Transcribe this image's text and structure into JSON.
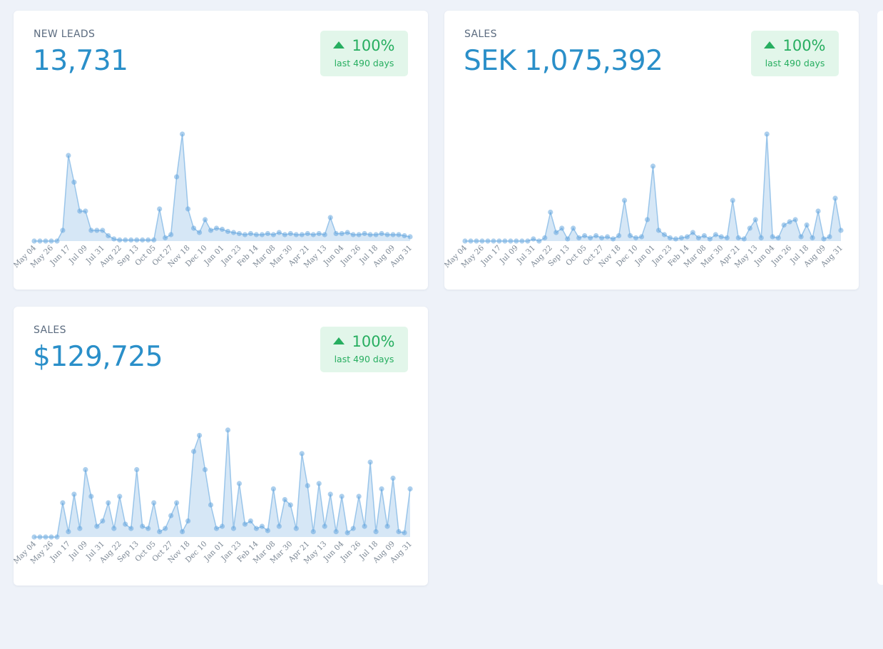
{
  "chart_data": [
    {
      "type": "area",
      "title": "NEW LEADS",
      "total": "13,731",
      "change": "100%",
      "period": "last 490 days",
      "color": "#5aa0dc",
      "ylim": [
        0,
        100
      ],
      "categories": [
        "May 04",
        null,
        null,
        "May 26",
        null,
        null,
        "Jun 17",
        null,
        null,
        "Jul 09",
        null,
        null,
        "Jul 31",
        null,
        null,
        "Aug 22",
        null,
        null,
        "Sep 13",
        null,
        null,
        "Oct 05",
        null,
        null,
        "Oct 27",
        null,
        null,
        "Nov 18",
        null,
        null,
        "Dec 10",
        null,
        null,
        "Jan 01",
        null,
        null,
        "Jan 23",
        null,
        null,
        "Feb 14",
        null,
        null,
        "Mar 08",
        null,
        null,
        "Mar 30",
        null,
        null,
        "Apr 21",
        null,
        null,
        "May 13",
        null,
        null,
        "Jun 04",
        null,
        null,
        "Jun 26",
        null,
        null,
        "Jul 18",
        null,
        null,
        "Aug 09",
        null,
        null,
        "Aug 31"
      ],
      "values": [
        0,
        0,
        0,
        0,
        0,
        10,
        80,
        55,
        28,
        28,
        10,
        10,
        10,
        5,
        2,
        1,
        1,
        1,
        1,
        1,
        1,
        1,
        30,
        3,
        6,
        60,
        100,
        30,
        12,
        8,
        20,
        10,
        12,
        11,
        9,
        8,
        7,
        6,
        7,
        6,
        6,
        7,
        6,
        8,
        6,
        7,
        6,
        6,
        7,
        6,
        7,
        6,
        22,
        7,
        7,
        8,
        6,
        6,
        7,
        6,
        6,
        7,
        6,
        6,
        6,
        5,
        4
      ]
    },
    {
      "type": "area",
      "title": "SALES",
      "total": "SEK 1,075,392",
      "change": "100%",
      "period": "last 490 days",
      "color": "#5aa0dc",
      "ylim": [
        0,
        100
      ],
      "categories": [
        "May 04",
        null,
        null,
        "May 26",
        null,
        null,
        "Jun 17",
        null,
        null,
        "Jul 09",
        null,
        null,
        "Jul 31",
        null,
        null,
        "Aug 22",
        null,
        null,
        "Sep 13",
        null,
        null,
        "Oct 05",
        null,
        null,
        "Oct 27",
        null,
        null,
        "Nov 18",
        null,
        null,
        "Dec 10",
        null,
        null,
        "Jan 01",
        null,
        null,
        "Jan 23",
        null,
        null,
        "Feb 14",
        null,
        null,
        "Mar 08",
        null,
        null,
        "Mar 30",
        null,
        null,
        "Apr 21",
        null,
        null,
        "May 13",
        null,
        null,
        "Jun 04",
        null,
        null,
        "Jun 26",
        null,
        null,
        "Jul 18",
        null,
        null,
        "Aug 09",
        null,
        null,
        "Aug 31"
      ],
      "values": [
        0,
        0,
        0,
        0,
        0,
        0,
        0,
        0,
        0,
        0,
        0,
        0,
        2,
        0,
        3,
        27,
        8,
        12,
        2,
        12,
        3,
        5,
        3,
        5,
        3,
        4,
        2,
        5,
        38,
        5,
        3,
        4,
        20,
        70,
        10,
        6,
        3,
        2,
        3,
        4,
        8,
        3,
        5,
        2,
        6,
        4,
        3,
        38,
        3,
        2,
        12,
        20,
        3,
        100,
        4,
        3,
        15,
        18,
        20,
        4,
        15,
        3,
        28,
        2,
        4,
        40,
        10
      ]
    },
    {
      "type": "area",
      "title": "SALES",
      "total": "$129,725",
      "change": "100%",
      "period": "last 490 days",
      "color": "#5aa0dc",
      "ylim": [
        0,
        100
      ],
      "categories": [
        "May 04",
        null,
        null,
        "May 26",
        null,
        null,
        "Jun 17",
        null,
        null,
        "Jul 09",
        null,
        null,
        "Jul 31",
        null,
        null,
        "Aug 22",
        null,
        null,
        "Sep 13",
        null,
        null,
        "Oct 05",
        null,
        null,
        "Oct 27",
        null,
        null,
        "Nov 18",
        null,
        null,
        "Dec 10",
        null,
        null,
        "Jan 01",
        null,
        null,
        "Jan 23",
        null,
        null,
        "Feb 14",
        null,
        null,
        "Mar 08",
        null,
        null,
        "Mar 30",
        null,
        null,
        "Apr 21",
        null,
        null,
        "May 13",
        null,
        null,
        "Jun 04",
        null,
        null,
        "Jun 26",
        null,
        null,
        "Jul 18",
        null,
        null,
        "Aug 09",
        null,
        null,
        "Aug 31"
      ],
      "values": [
        0,
        0,
        0,
        0,
        0,
        32,
        5,
        40,
        8,
        63,
        38,
        10,
        15,
        32,
        8,
        38,
        12,
        8,
        63,
        10,
        8,
        32,
        5,
        8,
        20,
        32,
        5,
        15,
        80,
        95,
        63,
        30,
        8,
        10,
        100,
        8,
        50,
        12,
        15,
        8,
        10,
        6,
        45,
        10,
        35,
        30,
        8,
        78,
        48,
        5,
        50,
        10,
        40,
        5,
        38,
        4,
        8,
        38,
        10,
        70,
        5,
        45,
        10,
        55,
        5,
        4,
        45
      ]
    }
  ]
}
